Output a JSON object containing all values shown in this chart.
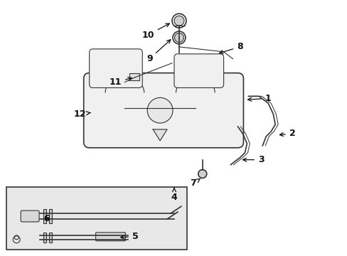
{
  "bg_color": "#ffffff",
  "line_color": "#333333",
  "label_color": "#111111",
  "box_bg": "#e8e8e8",
  "figsize": [
    4.89,
    3.6
  ],
  "dpi": 100
}
